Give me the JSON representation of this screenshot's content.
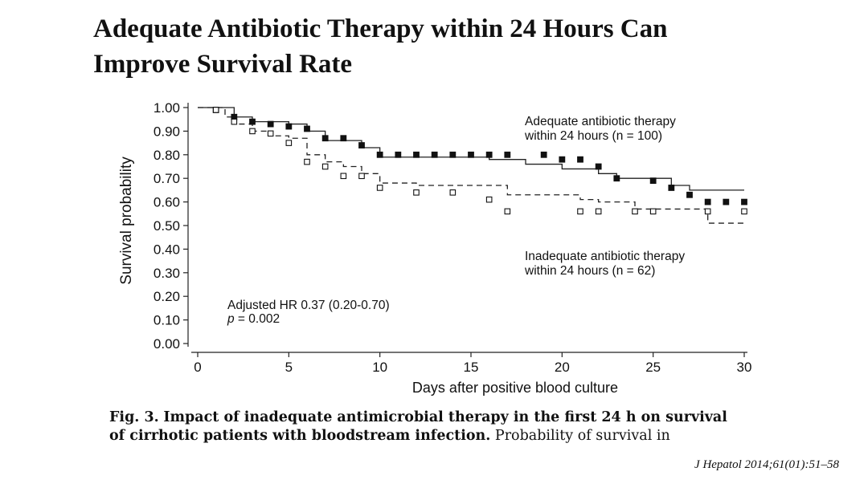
{
  "slide": {
    "title_line1": "Adequate Antibiotic Therapy within 24 Hours Can",
    "title_line2": "Improve Survival Rate",
    "caption": {
      "fig_label": "Fig. 3.",
      "bold_text_line1": "Impact of inadequate antimicrobial therapy in the first 24 h on survival",
      "bold_text_line2": "of cirrhotic patients with bloodstream infection.",
      "normal_text_line2": "Probability of survival in"
    },
    "citation": "J Hepatol 2014;61(01):51–58"
  },
  "chart_data": {
    "type": "line",
    "xlabel": "Days after positive blood culture",
    "ylabel": "Survival probability",
    "xlim": [
      0,
      30
    ],
    "ylim": [
      0,
      1
    ],
    "x_ticks": [
      0,
      5,
      10,
      15,
      20,
      25,
      30
    ],
    "y_ticks": [
      "0.00",
      "0.10",
      "0.20",
      "0.30",
      "0.40",
      "0.50",
      "0.60",
      "0.70",
      "0.80",
      "0.90",
      "1.00"
    ],
    "legend": {
      "adequate_line1": "Adequate antibiotic therapy",
      "adequate_line2": "within 24 hours (n = 100)",
      "inadequate_line1": "Inadequate antibiotic therapy",
      "inadequate_line2": "within 24 hours (n = 62)"
    },
    "annotation": {
      "hr": "Adjusted HR 0.37 (0.20-0.70)",
      "p_label": "p",
      "p_value": " = 0.002"
    },
    "series": [
      {
        "name": "Adequate antibiotic therapy within 24 hours (n = 100)",
        "style": "solid",
        "marker": "filled-square",
        "steps": [
          [
            0,
            1.0
          ],
          [
            2,
            0.96
          ],
          [
            3,
            0.94
          ],
          [
            5,
            0.93
          ],
          [
            6,
            0.9
          ],
          [
            7,
            0.86
          ],
          [
            9,
            0.83
          ],
          [
            10,
            0.79
          ],
          [
            16,
            0.78
          ],
          [
            18,
            0.76
          ],
          [
            20,
            0.74
          ],
          [
            22,
            0.72
          ],
          [
            23,
            0.7
          ],
          [
            26,
            0.67
          ],
          [
            27,
            0.65
          ],
          [
            28,
            0.65
          ],
          [
            30,
            0.65
          ]
        ],
        "censor_x": [
          1,
          2,
          3,
          4,
          5,
          6,
          7,
          8,
          9,
          10,
          11,
          12,
          13,
          14,
          15,
          16,
          17,
          19,
          20,
          21,
          22,
          23,
          25,
          26,
          27,
          28,
          29,
          30
        ],
        "censor_y": [
          0.99,
          0.96,
          0.94,
          0.93,
          0.92,
          0.91,
          0.87,
          0.87,
          0.84,
          0.8,
          0.8,
          0.8,
          0.8,
          0.8,
          0.8,
          0.8,
          0.8,
          0.8,
          0.78,
          0.78,
          0.75,
          0.7,
          0.69,
          0.66,
          0.63,
          0.6,
          0.6,
          0.6
        ]
      },
      {
        "name": "Inadequate antibiotic therapy within 24 hours (n = 62)",
        "style": "dashed",
        "marker": "open-square",
        "steps": [
          [
            0,
            1.0
          ],
          [
            1.5,
            0.96
          ],
          [
            2,
            0.93
          ],
          [
            3,
            0.9
          ],
          [
            4,
            0.88
          ],
          [
            5,
            0.87
          ],
          [
            6,
            0.8
          ],
          [
            7,
            0.77
          ],
          [
            8,
            0.75
          ],
          [
            9,
            0.72
          ],
          [
            10,
            0.68
          ],
          [
            12,
            0.67
          ],
          [
            17,
            0.63
          ],
          [
            21,
            0.61
          ],
          [
            22,
            0.6
          ],
          [
            24,
            0.57
          ],
          [
            28,
            0.51
          ],
          [
            30,
            0.51
          ]
        ],
        "censor_x": [
          1,
          2,
          3,
          4,
          5,
          6,
          7,
          8,
          9,
          10,
          12,
          14,
          16,
          17,
          21,
          22,
          24,
          25,
          28,
          30
        ],
        "censor_y": [
          0.99,
          0.94,
          0.9,
          0.89,
          0.85,
          0.77,
          0.75,
          0.71,
          0.71,
          0.66,
          0.64,
          0.64,
          0.61,
          0.56,
          0.56,
          0.56,
          0.56,
          0.56,
          0.56,
          0.56
        ]
      }
    ]
  }
}
